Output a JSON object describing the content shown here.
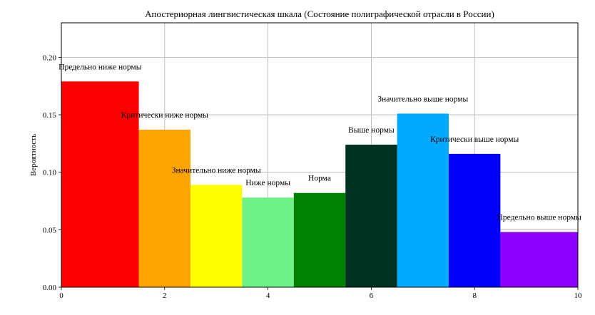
{
  "chart_data": {
    "type": "bar",
    "title": "Апостериорная лингвистическая шкала (Состояние полиграфической отрасли в России)",
    "xlabel": "",
    "ylabel": "Вероятность",
    "xlim": [
      0,
      10
    ],
    "ylim": [
      0,
      0.23
    ],
    "xticks": [
      0,
      2,
      4,
      6,
      8,
      10
    ],
    "yticks": [
      0.0,
      0.05,
      0.1,
      0.15,
      0.2
    ],
    "grid": true,
    "legend": "none",
    "bars": [
      {
        "label": "Предельно ниже нормы",
        "x0": 0.0,
        "x1": 1.5,
        "value": 0.179,
        "color": "#ff0000"
      },
      {
        "label": "Критически ниже нормы",
        "x0": 1.5,
        "x1": 2.5,
        "value": 0.137,
        "color": "#ffa500"
      },
      {
        "label": "Значительно ниже нормы",
        "x0": 2.5,
        "x1": 3.5,
        "value": 0.089,
        "color": "#ffff00"
      },
      {
        "label": "Ниже нормы",
        "x0": 3.5,
        "x1": 4.5,
        "value": 0.078,
        "color": "#6ef286"
      },
      {
        "label": "Норма",
        "x0": 4.5,
        "x1": 5.5,
        "value": 0.082,
        "color": "#008000"
      },
      {
        "label": "Выше нормы",
        "x0": 5.5,
        "x1": 6.5,
        "value": 0.124,
        "color": "#013220"
      },
      {
        "label": "Значительно выше нормы",
        "x0": 6.5,
        "x1": 7.5,
        "value": 0.151,
        "color": "#00aaff"
      },
      {
        "label": "Критически выше нормы",
        "x0": 7.5,
        "x1": 8.5,
        "value": 0.116,
        "color": "#0000ff"
      },
      {
        "label": "Предельно выше нормы",
        "x0": 8.5,
        "x1": 10.0,
        "value": 0.048,
        "color": "#8b00ff"
      }
    ]
  }
}
